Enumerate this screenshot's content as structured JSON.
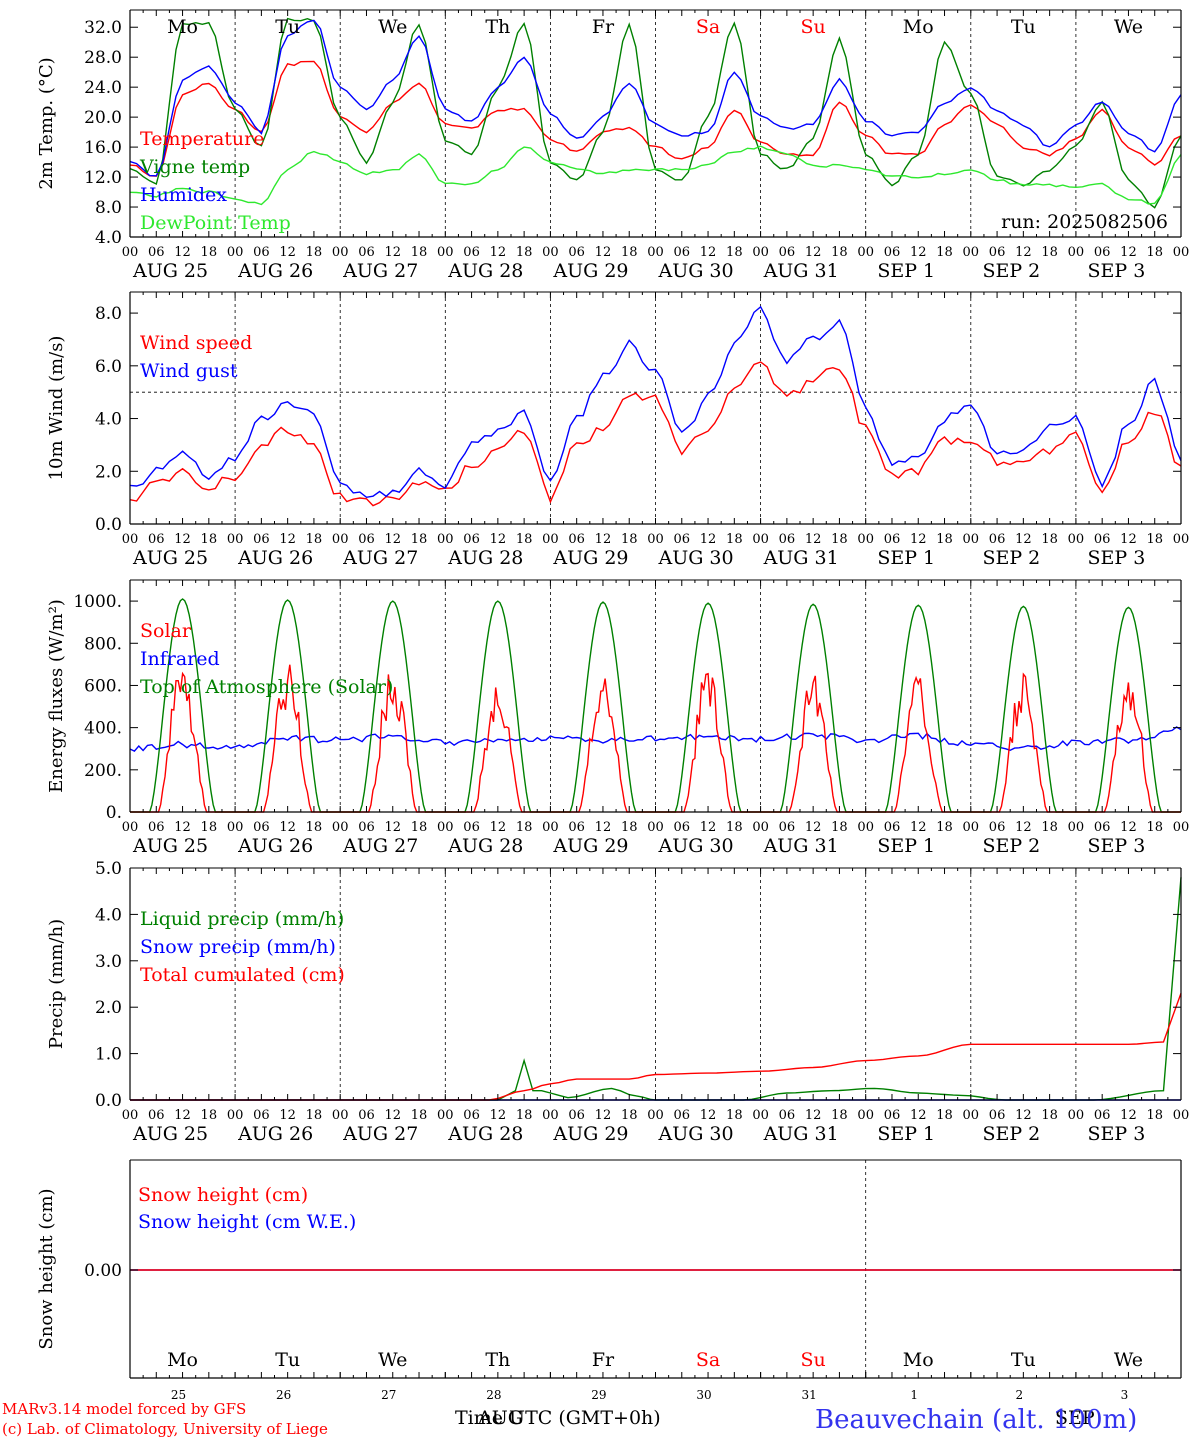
{
  "colors": {
    "red": "#ff0000",
    "dark_green": "#008000",
    "blue": "#0000ff",
    "light_green": "#2ee82e",
    "axis": "#000000"
  },
  "days": {
    "names": [
      "Mo",
      "Tu",
      "We",
      "Th",
      "Fr",
      "Sa",
      "Su",
      "Mo",
      "Tu",
      "We"
    ],
    "name_colors": [
      "#000000",
      "#000000",
      "#000000",
      "#000000",
      "#000000",
      "#ff0000",
      "#ff0000",
      "#000000",
      "#000000",
      "#000000"
    ],
    "dates": [
      "AUG 25",
      "AUG 26",
      "AUG 27",
      "AUG 28",
      "AUG 29",
      "AUG 30",
      "AUG 31",
      "SEP  1",
      "SEP  2",
      "SEP  3"
    ],
    "day_numbers": [
      "25",
      "26",
      "27",
      "28",
      "29",
      "30",
      "31",
      "1",
      "2",
      "3"
    ],
    "hour_ticks": [
      "00",
      "06",
      "12",
      "18"
    ],
    "final_tick": "00"
  },
  "footer": {
    "model_line": "MARv3.14 model forced by GFS",
    "copyright_line": "(c) Lab. of Climatology, University of Liege",
    "time_label": "Time UTC (GMT+0h)",
    "month_aug": "AUG",
    "month_sep": "SEP",
    "station": "Beauvechain (alt. 100m)"
  },
  "chart_data": [
    {
      "type": "line",
      "ylabel": "2m Temp. (°C)",
      "ylim": [
        4,
        34
      ],
      "yticks": [
        "4.0",
        "8.0",
        "12.0",
        "16.0",
        "20.0",
        "24.0",
        "28.0",
        "32.0"
      ],
      "annotation": "run: 2025082506",
      "x_unit": "hours since AUG 25 00 UTC",
      "series": [
        {
          "name": "Temperature",
          "color": "#ff0000",
          "x": [
            0,
            6,
            12,
            18,
            24,
            30,
            36,
            42,
            48,
            54,
            60,
            66,
            72,
            78,
            84,
            90,
            96,
            102,
            108,
            114,
            120,
            126,
            132,
            138,
            144,
            150,
            156,
            162,
            168,
            174,
            180,
            186,
            192,
            198,
            204,
            210,
            216,
            222,
            228,
            234,
            240
          ],
          "y": [
            13.8,
            12,
            23,
            24.4,
            21,
            18,
            27,
            27.5,
            20,
            18,
            22,
            24.5,
            19,
            18.5,
            21,
            21,
            17,
            15.5,
            18,
            18.5,
            16,
            14.3,
            16,
            21,
            16.5,
            15,
            15,
            22,
            17.5,
            15,
            15,
            19,
            21.5,
            19,
            16,
            15,
            17,
            21,
            16,
            13.8,
            17.5
          ]
        },
        {
          "name": "Vigne temp",
          "color": "#008000",
          "x": [
            0,
            6,
            12,
            18,
            24,
            30,
            36,
            42,
            48,
            54,
            60,
            66,
            72,
            78,
            84,
            90,
            96,
            102,
            108,
            114,
            120,
            126,
            132,
            138,
            144,
            150,
            156,
            162,
            168,
            174,
            180,
            186,
            192,
            198,
            204,
            210,
            216,
            222,
            228,
            234,
            240
          ],
          "y": [
            13,
            11,
            32.5,
            32.5,
            21,
            16,
            33,
            33,
            20,
            14,
            22,
            32.5,
            17,
            15,
            24,
            32.5,
            14,
            11.5,
            18,
            32.5,
            13,
            11.5,
            20,
            32.5,
            15,
            13,
            17,
            30.5,
            15,
            11,
            15,
            30,
            23,
            12,
            11,
            13,
            16,
            22,
            11.5,
            8,
            17.5
          ]
        },
        {
          "name": "Humidex",
          "color": "#0000ff",
          "x": [
            0,
            6,
            12,
            18,
            24,
            30,
            36,
            42,
            48,
            54,
            60,
            66,
            72,
            78,
            84,
            90,
            96,
            102,
            108,
            114,
            120,
            126,
            132,
            138,
            144,
            150,
            156,
            162,
            168,
            174,
            180,
            186,
            192,
            198,
            204,
            210,
            216,
            222,
            228,
            234,
            240
          ],
          "y": [
            14,
            12,
            25,
            26.8,
            22,
            18,
            31,
            33,
            24,
            21,
            25,
            31,
            21,
            19.5,
            24,
            28,
            20.5,
            17,
            20,
            24.5,
            19,
            17.5,
            18,
            26,
            20,
            18.5,
            19,
            25,
            19.5,
            17.5,
            18,
            22,
            24,
            21,
            19,
            16,
            19,
            22,
            18,
            15.5,
            23
          ]
        },
        {
          "name": "DewPoint Temp",
          "color": "#2ee82e",
          "x": [
            0,
            6,
            12,
            18,
            24,
            30,
            36,
            42,
            48,
            54,
            60,
            66,
            72,
            78,
            84,
            90,
            96,
            102,
            108,
            114,
            120,
            126,
            132,
            138,
            144,
            150,
            156,
            162,
            168,
            174,
            180,
            186,
            192,
            198,
            204,
            210,
            216,
            222,
            228,
            234,
            240
          ],
          "y": [
            10,
            9.5,
            10.5,
            10,
            9,
            8.5,
            13,
            15.5,
            14,
            12.5,
            12.8,
            15,
            11,
            11,
            13,
            16,
            14,
            13,
            12.5,
            13,
            13,
            13,
            13.5,
            15.5,
            16,
            15,
            13.5,
            13.5,
            13,
            12,
            12,
            12.5,
            13,
            11.5,
            11,
            11,
            10.5,
            11,
            9,
            8.5,
            15
          ]
        }
      ]
    },
    {
      "type": "line",
      "ylabel": "10m Wind (m/s)",
      "ylim": [
        0,
        8.8
      ],
      "yticks": [
        "0.0",
        "2.0",
        "4.0",
        "6.0",
        "8.0"
      ],
      "reference_line": 5.0,
      "x_unit": "hours since AUG 25 00 UTC",
      "series": [
        {
          "name": "Wind speed",
          "color": "#ff0000",
          "x": [
            0,
            6,
            12,
            18,
            24,
            30,
            36,
            42,
            48,
            54,
            60,
            66,
            72,
            78,
            84,
            90,
            96,
            102,
            108,
            114,
            120,
            126,
            132,
            138,
            144,
            150,
            156,
            162,
            168,
            174,
            180,
            186,
            192,
            198,
            204,
            210,
            216,
            222,
            228,
            234,
            240
          ],
          "y": [
            0.9,
            1.5,
            2,
            1.4,
            1.8,
            3,
            3.6,
            3,
            1,
            0.8,
            1,
            1.6,
            1.2,
            2.2,
            2.7,
            3.5,
            1,
            3,
            3.6,
            4.8,
            4.8,
            2.8,
            3.6,
            5.2,
            6,
            4.8,
            5.5,
            6,
            3.6,
            1.8,
            2,
            3.2,
            3.2,
            2.4,
            2.2,
            2.8,
            3.5,
            1.3,
            3.2,
            4.3,
            2.2
          ]
        },
        {
          "name": "Wind gust",
          "color": "#0000ff",
          "x": [
            0,
            6,
            12,
            18,
            24,
            30,
            36,
            42,
            48,
            54,
            60,
            66,
            72,
            78,
            84,
            90,
            96,
            102,
            108,
            114,
            120,
            126,
            132,
            138,
            144,
            150,
            156,
            162,
            168,
            174,
            180,
            186,
            192,
            198,
            204,
            210,
            216,
            222,
            228,
            234,
            240
          ],
          "y": [
            1.3,
            2,
            2.6,
            1.8,
            2.5,
            4,
            4.5,
            4.2,
            1.5,
            1,
            1.2,
            2,
            1.5,
            3,
            3.5,
            4.2,
            1.5,
            4,
            5.6,
            6.8,
            5.8,
            3.4,
            4.8,
            6.8,
            8.1,
            6.2,
            7,
            7.6,
            4.4,
            2.3,
            2.6,
            4,
            4.4,
            2.8,
            2.7,
            3.8,
            4,
            1.5,
            3.8,
            5.4,
            2.4
          ]
        }
      ]
    },
    {
      "type": "line",
      "ylabel": "Energy fluxes (W/m²)",
      "ylim": [
        0,
        1100
      ],
      "yticks": [
        "0.",
        "200.",
        "400.",
        "600.",
        "800.",
        "1000."
      ],
      "x_unit": "hours since AUG 25 00 UTC",
      "series": [
        {
          "name": "Solar",
          "color": "#ff0000",
          "day_peaks": [
            750,
            740,
            740,
            650,
            720,
            710,
            700,
            650,
            670,
            700
          ]
        },
        {
          "name": "Infrared",
          "color": "#0000ff",
          "x": [
            0,
            12,
            24,
            36,
            48,
            60,
            72,
            84,
            96,
            108,
            120,
            132,
            144,
            156,
            168,
            180,
            192,
            204,
            216,
            228,
            240
          ],
          "y": [
            300,
            320,
            310,
            350,
            340,
            360,
            330,
            345,
            350,
            340,
            350,
            355,
            345,
            365,
            340,
            360,
            320,
            300,
            330,
            340,
            390
          ]
        },
        {
          "name": "Top of Atmosphere (Solar)",
          "color": "#008000",
          "day_peaks": [
            1010,
            1005,
            1000,
            1000,
            995,
            990,
            985,
            980,
            975,
            970
          ]
        }
      ]
    },
    {
      "type": "line",
      "ylabel": "Precip (mm/h)",
      "ylim": [
        0,
        5
      ],
      "yticks": [
        "0.0",
        "1.0",
        "2.0",
        "3.0",
        "4.0",
        "5.0"
      ],
      "x_unit": "hours since AUG 25 00 UTC",
      "series": [
        {
          "name": "Liquid precip (mm/h)",
          "color": "#008000",
          "x": [
            0,
            84,
            86,
            88,
            90,
            92,
            94,
            96,
            100,
            110,
            115,
            120,
            140,
            150,
            160,
            170,
            180,
            190,
            200,
            220,
            236,
            238,
            240
          ],
          "y": [
            0,
            0,
            0.1,
            0.2,
            0.85,
            0.2,
            0.2,
            0.15,
            0.05,
            0.25,
            0.1,
            0,
            0,
            0.15,
            0.2,
            0.25,
            0.15,
            0.1,
            0,
            0,
            0.2,
            2.5,
            4.8
          ]
        },
        {
          "name": "Snow precip (mm/h)",
          "color": "#0000ff",
          "x": [
            0,
            240
          ],
          "y": [
            0,
            0
          ]
        },
        {
          "name": "Total cumulated (cm)",
          "color": "#ff0000",
          "x": [
            0,
            82,
            90,
            96,
            102,
            114,
            120,
            132,
            144,
            156,
            168,
            180,
            192,
            228,
            236,
            240
          ],
          "y": [
            0,
            0,
            0.2,
            0.35,
            0.45,
            0.45,
            0.55,
            0.58,
            0.62,
            0.7,
            0.85,
            0.95,
            1.2,
            1.2,
            1.25,
            2.3
          ]
        }
      ]
    },
    {
      "type": "line",
      "ylabel": "Snow height (cm)",
      "yticks": [
        "0.00"
      ],
      "x_unit": "hours since AUG 25 00 UTC",
      "series": [
        {
          "name": "Snow height (cm)",
          "color": "#ff0000",
          "x": [
            0,
            240
          ],
          "y": [
            0,
            0
          ]
        },
        {
          "name": "Snow height (cm W.E.)",
          "color": "#0000ff",
          "x": [
            0,
            240
          ],
          "y": [
            0,
            0
          ]
        }
      ]
    }
  ]
}
